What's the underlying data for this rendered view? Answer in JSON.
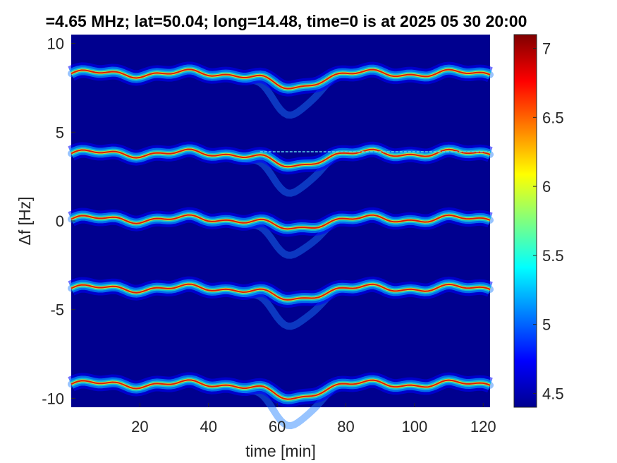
{
  "chart_data": {
    "type": "heatmap",
    "title": "=4.65 MHz;  lat=50.04; long=14.48, time=0 is at 2025 05 30 20:00",
    "xlabel": "time [min]",
    "ylabel": "Δf [Hz]",
    "xlim": [
      0,
      122
    ],
    "ylim": [
      -10.5,
      10.5
    ],
    "xticks": [
      20,
      40,
      60,
      80,
      100,
      120
    ],
    "yticks": [
      -10,
      -5,
      0,
      5,
      10
    ],
    "colorbar": {
      "range": [
        4.4,
        7.1
      ],
      "ticks": [
        4.5,
        5,
        5.5,
        6,
        6.5,
        7
      ],
      "colormap": "jet"
    },
    "background_color": "#00008f",
    "bands": [
      {
        "base_offset": 8.3,
        "dip_depth": 0.9
      },
      {
        "base_offset": 3.8,
        "dip_depth": 0.8
      },
      {
        "base_offset": 0.1,
        "dip_depth": 0.6
      },
      {
        "base_offset": -3.8,
        "dip_depth": 0.7
      },
      {
        "base_offset": -9.2,
        "dip_depth": 0.9
      }
    ],
    "reference_line": {
      "y": 3.9,
      "x_start": 55,
      "x_end": 122
    }
  }
}
